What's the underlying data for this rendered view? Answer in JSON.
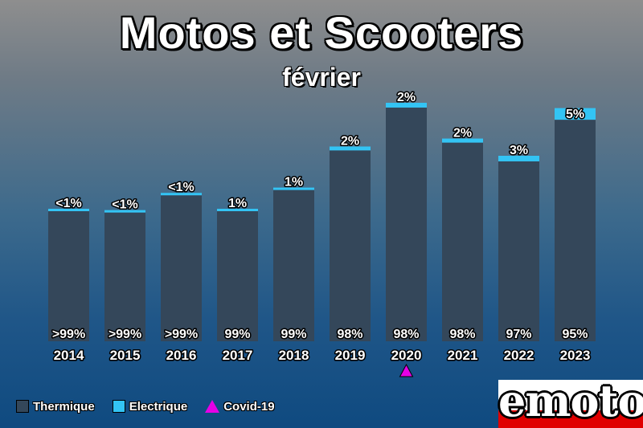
{
  "title": "Motos et Scooters",
  "subtitle": "février",
  "colors": {
    "thermique": "#34475a",
    "electrique": "#33c4f4",
    "covid": "#e600e6"
  },
  "legend": [
    {
      "label": "Thermique",
      "color": "#34475a"
    },
    {
      "label": "Electrique",
      "color": "#33c4f4"
    },
    {
      "label": "Covid-19",
      "color": "#e600e6",
      "marker": "triangle"
    }
  ],
  "logo": {
    "text": "emoto"
  },
  "chart_data": {
    "type": "bar",
    "stacked": true,
    "title": "Motos et Scooters",
    "subtitle": "février",
    "categories": [
      "2014",
      "2015",
      "2016",
      "2017",
      "2018",
      "2019",
      "2020",
      "2021",
      "2022",
      "2023"
    ],
    "totals": [
      100,
      99,
      112,
      100,
      116,
      147,
      180,
      153,
      140,
      176
    ],
    "series": [
      {
        "name": "Thermique",
        "share_labels": [
          ">99%",
          ">99%",
          ">99%",
          "99%",
          "99%",
          "98%",
          "98%",
          "98%",
          "97%",
          "95%"
        ],
        "share": [
          99.6,
          99.6,
          99.6,
          99,
          99,
          98,
          98,
          98,
          97,
          95
        ]
      },
      {
        "name": "Electrique",
        "share_labels": [
          "<1%",
          "<1%",
          "<1%",
          "1%",
          "1%",
          "2%",
          "2%",
          "2%",
          "3%",
          "5%"
        ],
        "share": [
          0.4,
          0.4,
          0.4,
          1,
          1,
          2,
          2,
          2,
          3,
          5
        ]
      }
    ],
    "covid_marker_category": "2020",
    "grid": false,
    "legend_position": "bottom-left"
  }
}
